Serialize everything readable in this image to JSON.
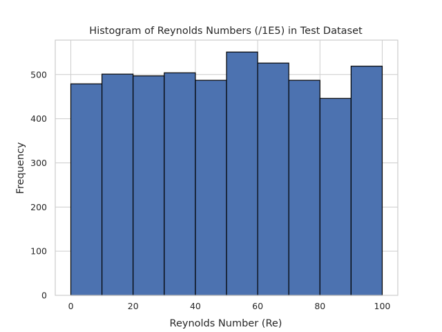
{
  "chart_data": {
    "type": "bar",
    "title": "Histogram of Reynolds Numbers (/1E5) in Test Dataset",
    "xlabel": "Reynolds Number (Re)",
    "ylabel": "Frequency",
    "bin_edges": [
      0,
      10,
      20,
      30,
      40,
      50,
      60,
      70,
      80,
      90,
      100
    ],
    "values": [
      479,
      501,
      497,
      504,
      487,
      551,
      526,
      487,
      446,
      519
    ],
    "xlim": [
      -5,
      105
    ],
    "ylim": [
      0,
      578
    ],
    "xticks": [
      0,
      20,
      40,
      60,
      80,
      100
    ],
    "yticks": [
      0,
      100,
      200,
      300,
      400,
      500
    ],
    "grid": true,
    "bar_color": "#4c72b0",
    "edge_color": "#000000"
  }
}
